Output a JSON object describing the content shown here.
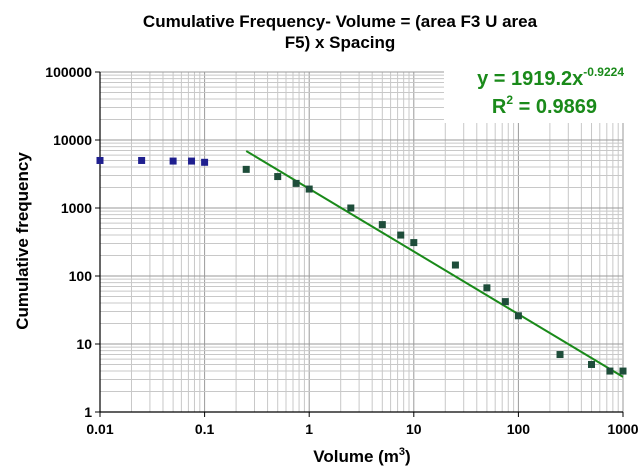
{
  "chart_data": {
    "type": "scatter",
    "title_line1": "Cumulative Frequency- Volume = (area F3 U area",
    "title_line2": "F5) x Spacing",
    "xlabel": "Volume (m",
    "xlabel_sup": "3",
    "xlabel_end": ")",
    "ylabel": "Cumulative frequency",
    "xscale": "log",
    "yscale": "log",
    "xlim": [
      0.01,
      1000
    ],
    "ylim": [
      1,
      100000
    ],
    "x_tick_labels": [
      "0.01",
      "0.1",
      "1",
      "10",
      "100",
      "1000"
    ],
    "y_tick_labels": [
      "1",
      "10",
      "100",
      "1000",
      "10000",
      "100000"
    ],
    "grid": true,
    "series": [
      {
        "color": "#1f1f8f",
        "x": [
          0.01,
          0.025,
          0.05,
          0.075,
          0.1
        ],
        "y": [
          5000,
          5000,
          4900,
          4900,
          4700
        ]
      },
      {
        "color": "#1e4d3a",
        "x": [
          0.25,
          0.5,
          0.75,
          1,
          2.5,
          5,
          7.5,
          10,
          25,
          50,
          75,
          100,
          250,
          500,
          750,
          1000
        ],
        "y": [
          3700,
          2900,
          2300,
          1900,
          1000,
          570,
          400,
          310,
          145,
          67,
          42,
          26,
          7,
          5,
          4,
          4
        ]
      }
    ],
    "trendline": {
      "color": "#1a8a1a",
      "a": 1919.2,
      "b": -0.9224,
      "x_range": [
        0.25,
        1000
      ],
      "equation_prefix": "y = 1919.2x",
      "equation_exponent": "-0.9224",
      "r2_prefix": "R",
      "r2_sup": "2",
      "r2_suffix": " = 0.9869"
    }
  }
}
